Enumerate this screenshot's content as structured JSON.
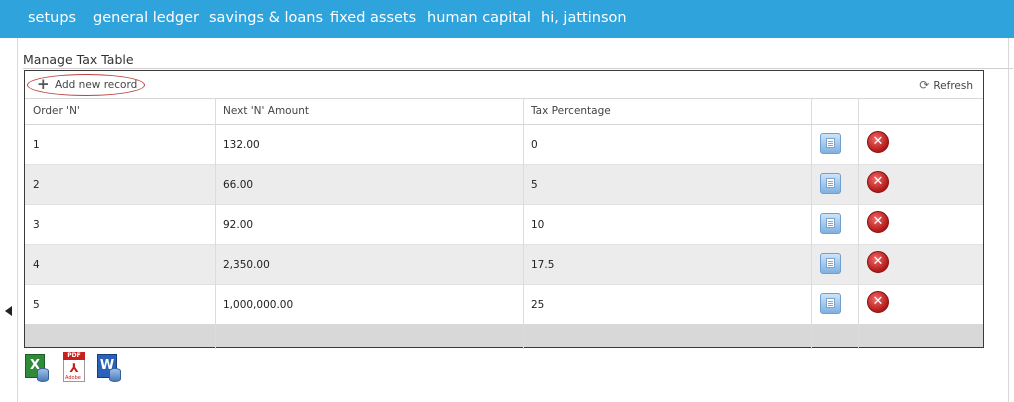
{
  "nav": {
    "items": [
      "setups",
      "general ledger",
      "savings & loans",
      "fixed assets",
      "human capital",
      "hi, jattinson"
    ]
  },
  "page": {
    "title": "Manage Tax Table"
  },
  "toolbar": {
    "add_label": "Add new record",
    "refresh_label": "Refresh"
  },
  "table": {
    "columns": [
      "Order 'N'",
      "Next 'N' Amount",
      "Tax Percentage",
      "",
      ""
    ],
    "rows": [
      {
        "order": "1",
        "amount": "132.00",
        "tax": "0"
      },
      {
        "order": "2",
        "amount": "66.00",
        "tax": "5"
      },
      {
        "order": "3",
        "amount": "92.00",
        "tax": "10"
      },
      {
        "order": "4",
        "amount": "2,350.00",
        "tax": "17.5"
      },
      {
        "order": "5",
        "amount": "1,000,000.00",
        "tax": "25"
      }
    ]
  },
  "export": {
    "icons": [
      "excel-export-icon",
      "pdf-export-icon",
      "word-export-icon"
    ],
    "pdf_band": "PDF",
    "pdf_brand": "Adobe"
  },
  "colors": {
    "nav_bg": "#2ea3dc",
    "alt_row": "#ececec",
    "footer": "#d8d8d8",
    "add_outline": "#b8423f"
  }
}
